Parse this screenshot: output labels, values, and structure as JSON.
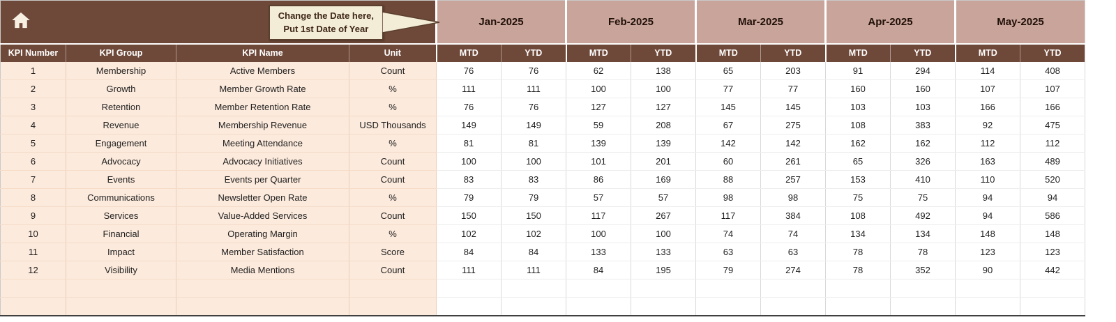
{
  "header": {
    "callout": {
      "line1": "Change the Date here,",
      "line2": "Put 1st Date of Year"
    },
    "months": [
      "Jan-2025",
      "Feb-2025",
      "Mar-2025",
      "Apr-2025",
      "May-2025"
    ]
  },
  "table": {
    "left_columns": [
      "KPI Number",
      "KPI Group",
      "KPI Name",
      "Unit"
    ],
    "value_subcolumns": [
      "MTD",
      "YTD"
    ],
    "rows": [
      {
        "number": "1",
        "group": "Membership",
        "name": "Active Members",
        "unit": "Count",
        "values": [
          76,
          76,
          62,
          138,
          65,
          203,
          91,
          294,
          114,
          408
        ]
      },
      {
        "number": "2",
        "group": "Growth",
        "name": "Member Growth Rate",
        "unit": "%",
        "values": [
          111,
          111,
          100,
          100,
          77,
          77,
          160,
          160,
          107,
          107
        ]
      },
      {
        "number": "3",
        "group": "Retention",
        "name": "Member Retention Rate",
        "unit": "%",
        "values": [
          76,
          76,
          127,
          127,
          145,
          145,
          103,
          103,
          166,
          166
        ]
      },
      {
        "number": "4",
        "group": "Revenue",
        "name": "Membership Revenue",
        "unit": "USD Thousands",
        "values": [
          149,
          149,
          59,
          208,
          67,
          275,
          108,
          383,
          92,
          475
        ]
      },
      {
        "number": "5",
        "group": "Engagement",
        "name": "Meeting Attendance",
        "unit": "%",
        "values": [
          81,
          81,
          139,
          139,
          142,
          142,
          162,
          162,
          112,
          112
        ]
      },
      {
        "number": "6",
        "group": "Advocacy",
        "name": "Advocacy Initiatives",
        "unit": "Count",
        "values": [
          100,
          100,
          101,
          201,
          60,
          261,
          65,
          326,
          163,
          489
        ]
      },
      {
        "number": "7",
        "group": "Events",
        "name": "Events per Quarter",
        "unit": "Count",
        "values": [
          83,
          83,
          86,
          169,
          88,
          257,
          153,
          410,
          110,
          520
        ]
      },
      {
        "number": "8",
        "group": "Communications",
        "name": "Newsletter Open Rate",
        "unit": "%",
        "values": [
          79,
          79,
          57,
          57,
          98,
          98,
          75,
          75,
          94,
          94
        ]
      },
      {
        "number": "9",
        "group": "Services",
        "name": "Value-Added Services",
        "unit": "Count",
        "values": [
          150,
          150,
          117,
          267,
          117,
          384,
          108,
          492,
          94,
          586
        ]
      },
      {
        "number": "10",
        "group": "Financial",
        "name": "Operating Margin",
        "unit": "%",
        "values": [
          102,
          102,
          100,
          100,
          74,
          74,
          134,
          134,
          148,
          148
        ]
      },
      {
        "number": "11",
        "group": "Impact",
        "name": "Member Satisfaction",
        "unit": "Score",
        "values": [
          84,
          84,
          133,
          133,
          63,
          63,
          78,
          78,
          123,
          123
        ]
      },
      {
        "number": "12",
        "group": "Visibility",
        "name": "Media Mentions",
        "unit": "Count",
        "values": [
          111,
          111,
          84,
          195,
          79,
          274,
          78,
          352,
          90,
          442
        ]
      }
    ],
    "empty_row_count": 2
  },
  "colors": {
    "dark_brown": "#6E4838",
    "rose": "#C9A49B",
    "peach": "#FCEADC",
    "callout_bg": "#F3EDD7",
    "callout_border": "#5A3F2E",
    "callout_text": "#3F2717"
  }
}
